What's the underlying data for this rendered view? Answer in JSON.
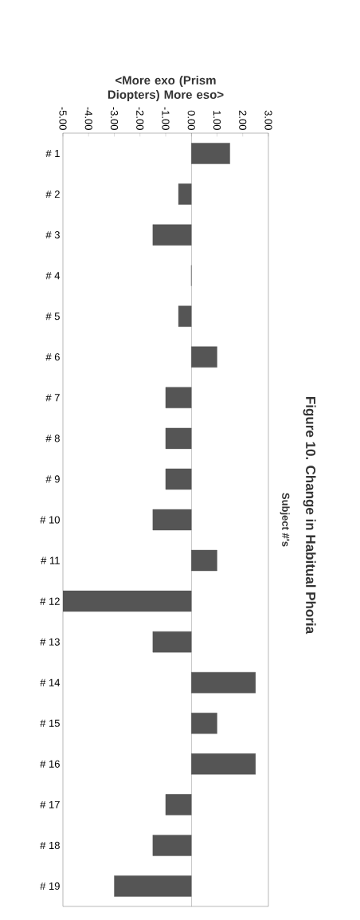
{
  "chart_data": {
    "type": "bar",
    "orientation": "horizontal",
    "title": "Figure 10. Change in Habitual Phoria",
    "xlabel": "<More exo (Prism Diopters) More eso>",
    "ylabel": "Subject #'s",
    "categories": [
      "# 1",
      "# 2",
      "# 3",
      "# 4",
      "# 5",
      "# 6",
      "# 7",
      "# 8",
      "# 9",
      "# 10",
      "# 11",
      "# 12",
      "# 13",
      "# 14",
      "# 15",
      "# 16",
      "# 17",
      "# 18",
      "# 19"
    ],
    "values": [
      1.5,
      -0.5,
      -1.5,
      0,
      -0.5,
      1.0,
      -1.0,
      -1.0,
      -1.0,
      -1.5,
      1.0,
      -5.0,
      -1.5,
      2.5,
      1.0,
      2.5,
      -1.0,
      -1.5,
      -3.0
    ],
    "color": "#555555",
    "xlim": [
      -5,
      3
    ],
    "xticks": [
      {
        "value": -5,
        "label": "-5.00"
      },
      {
        "value": -4,
        "label": "-4.00"
      },
      {
        "value": -3,
        "label": "-3.00"
      },
      {
        "value": -2,
        "label": "-2.00"
      },
      {
        "value": -1,
        "label": "-1.00"
      },
      {
        "value": 0,
        "label": "0.00"
      },
      {
        "value": 1,
        "label": "1.00"
      },
      {
        "value": 2,
        "label": "2.00"
      },
      {
        "value": 3,
        "label": "3.00"
      }
    ]
  }
}
